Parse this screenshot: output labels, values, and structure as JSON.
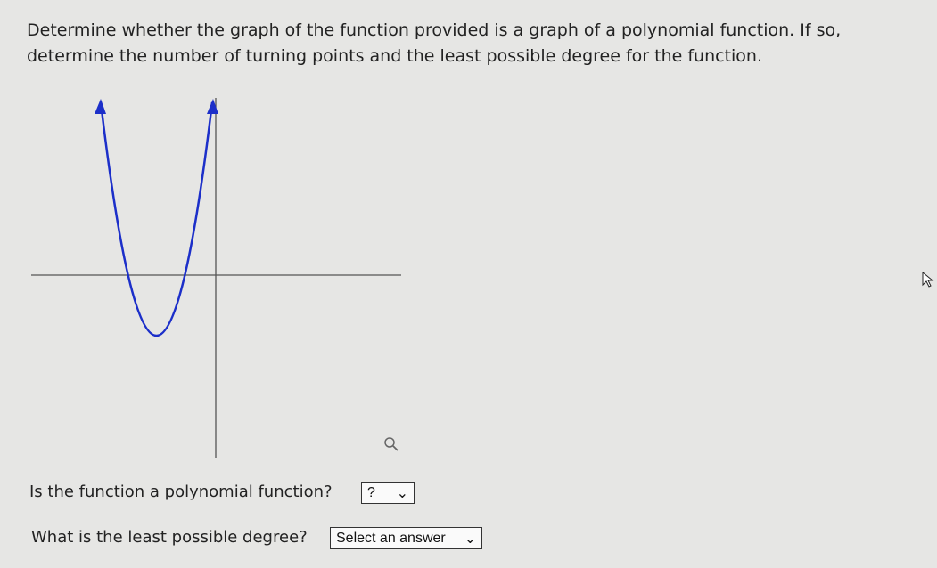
{
  "question": "Determine whether the graph of the function provided is a graph of a polynomial function. If so, determine the number of turning points and the least possible degree for the function.",
  "items": [
    {
      "prompt": "Is the function a polynomial function?",
      "select": "?"
    },
    {
      "prompt": "What is the least possible degree?",
      "select": "Select an answer"
    }
  ]
}
